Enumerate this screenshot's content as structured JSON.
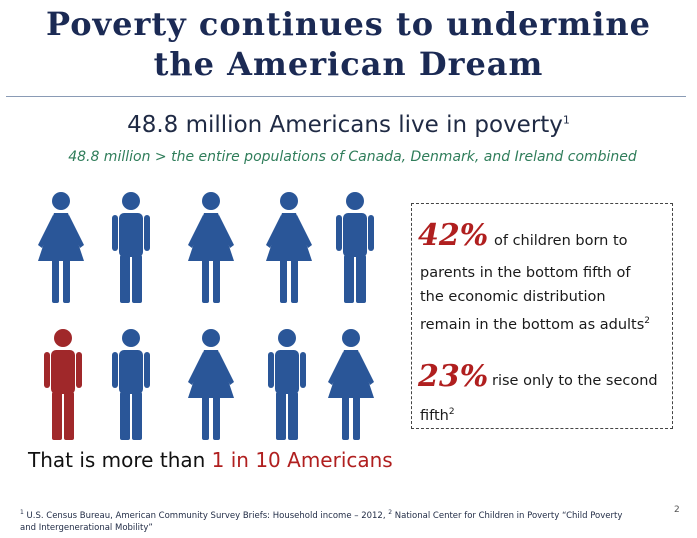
{
  "title": {
    "line1": "Poverty continues to undermine",
    "line2": "the American Dream"
  },
  "headline": {
    "text": "48.8 million Americans live in poverty",
    "footnote_mark": "1"
  },
  "subline": "48.8 million > the entire populations of Canada, Denmark, and Ireland combined",
  "colors": {
    "blue": "#2a5698",
    "red": "#a0282a",
    "title": "#1b2a54",
    "green": "#2f7d5a"
  },
  "figures": [
    {
      "gender": "female",
      "color": "blue"
    },
    {
      "gender": "male",
      "color": "blue"
    },
    {
      "gender": "female",
      "color": "blue"
    },
    {
      "gender": "female",
      "color": "blue"
    },
    {
      "gender": "male",
      "color": "blue"
    },
    {
      "gender": "male",
      "color": "red"
    },
    {
      "gender": "male",
      "color": "blue"
    },
    {
      "gender": "female",
      "color": "blue"
    },
    {
      "gender": "male",
      "color": "blue"
    },
    {
      "gender": "female",
      "color": "blue"
    }
  ],
  "stats": {
    "stat1": {
      "pct": "42%",
      "lead": "of children born to",
      "line2": "parents in the bottom fifth of",
      "line3": "the economic distribution",
      "line4": "remain in the bottom as adults",
      "mark": "2"
    },
    "stat2": {
      "pct": "23%",
      "lead": "rise only to the second",
      "line2": "fifth",
      "mark": "2"
    }
  },
  "caption": {
    "prefix": "That is more than ",
    "highlight": "1 in 10 Americans"
  },
  "footnote": {
    "mark1": "1",
    "text1": "U.S. Census Bureau, American Community Survey Briefs: Household income – 2012,",
    "mark2": "2",
    "text2": "National Center for Children in Poverty “Child Poverty and Intergenerational Mobility”"
  },
  "page_number": "2"
}
